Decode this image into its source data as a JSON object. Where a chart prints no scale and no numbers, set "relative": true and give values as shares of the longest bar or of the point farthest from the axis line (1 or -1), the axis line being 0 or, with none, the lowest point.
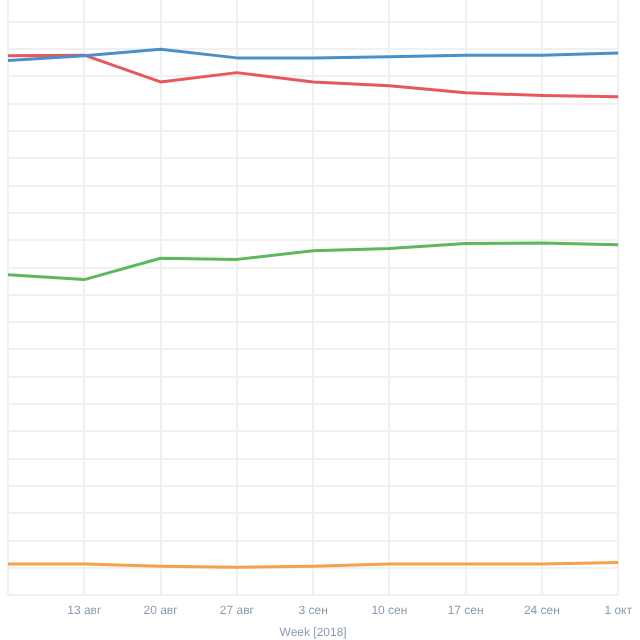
{
  "chart_data": {
    "type": "line",
    "relative": true,
    "xlabel": "Week [2018]",
    "grid": true,
    "marker": "none",
    "categories": [
      null,
      "13 авг",
      "20 авг",
      "27 авг",
      "3 сен",
      "10 сен",
      "17 сен",
      "24 сен",
      "1 окт"
    ],
    "series": [
      {
        "color": "#4a90c8",
        "values": [
          0.979,
          0.988,
          1,
          0.984,
          0.984,
          0.986,
          0.989,
          0.989,
          0.993
        ]
      },
      {
        "color": "#e8585a",
        "values": [
          0.988,
          0.989,
          0.94,
          0.957,
          0.94,
          0.933,
          0.92,
          0.915,
          0.913
        ]
      },
      {
        "color": "#5cb85c",
        "values": [
          0.587,
          0.578,
          0.617,
          0.615,
          0.631,
          0.635,
          0.644,
          0.645,
          0.642
        ]
      },
      {
        "color": "#f5a04a",
        "values": [
          0.057,
          0.057,
          0.053,
          0.051,
          0.053,
          0.057,
          0.057,
          0.057,
          0.06
        ]
      }
    ]
  }
}
